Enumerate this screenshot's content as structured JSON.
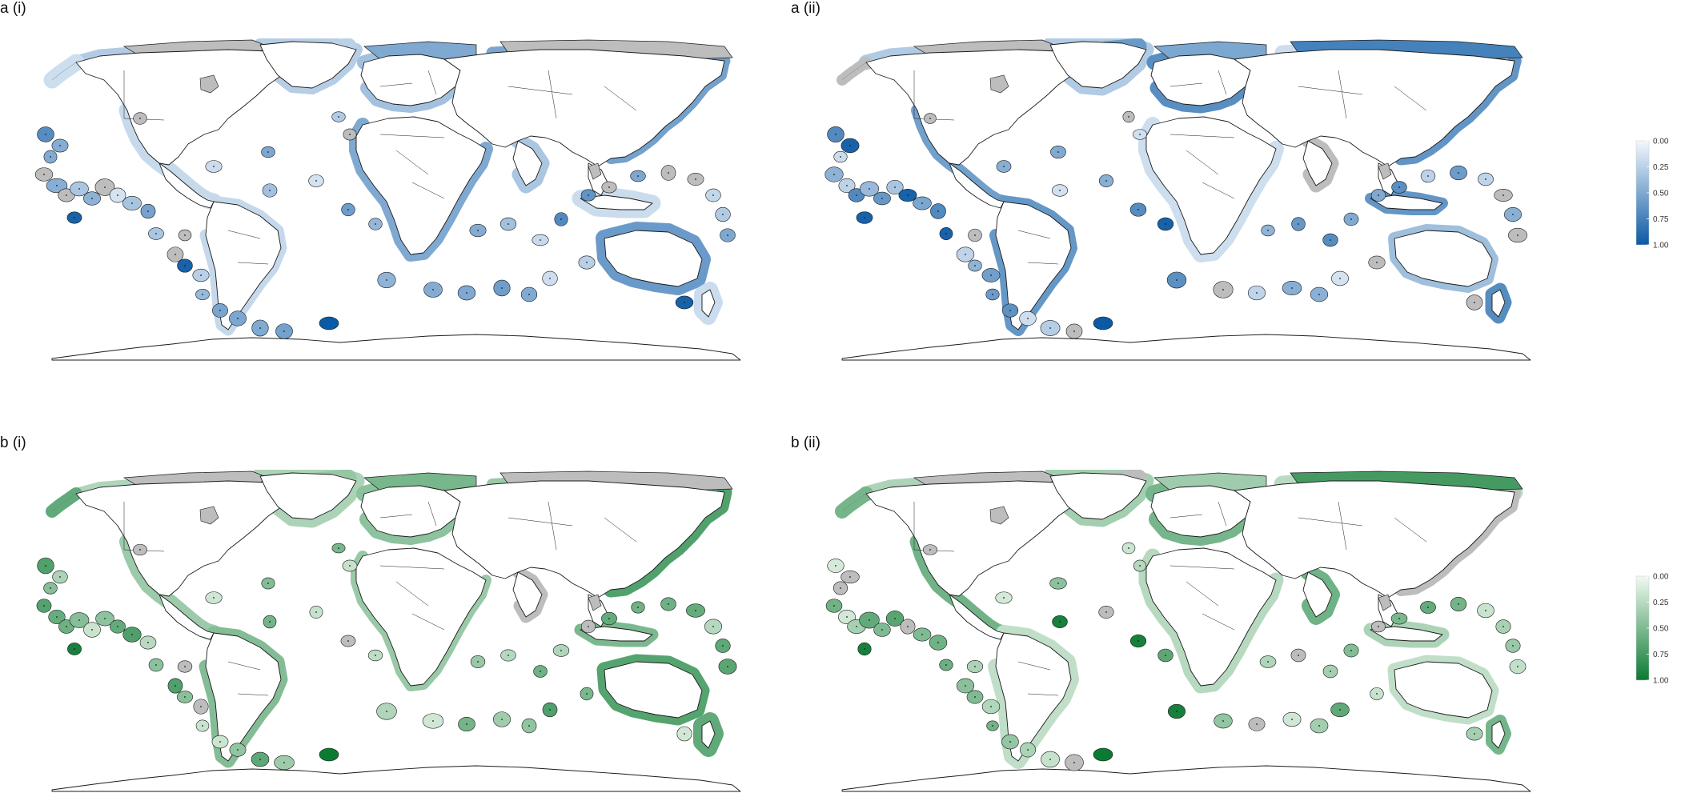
{
  "panels": [
    {
      "id": "a_i",
      "label": "a (i)",
      "scheme": "blue",
      "seed": 11
    },
    {
      "id": "a_ii",
      "label": "a (ii)",
      "scheme": "blue",
      "seed": 29
    },
    {
      "id": "b_i",
      "label": "b (i)",
      "scheme": "green",
      "seed": 47
    },
    {
      "id": "b_ii",
      "label": "b (ii)",
      "scheme": "green",
      "seed": 83
    }
  ],
  "legends": {
    "blue": {
      "ticks": [
        "0.00",
        "0.25",
        "0.50",
        "0.75",
        "1.00"
      ],
      "range": [
        0,
        1
      ],
      "color_low": "#f4f8fd",
      "color_high": "#0b5aa5"
    },
    "green": {
      "ticks": [
        "0.00",
        "0.25",
        "0.50",
        "0.75",
        "1.00"
      ],
      "range": [
        0,
        1
      ],
      "color_low": "#f2faf1",
      "color_high": "#0b7a32"
    }
  },
  "no_data_color": "#bdbdbd",
  "land_color": "#ffffff",
  "outline_color": "#1a1a1a"
}
